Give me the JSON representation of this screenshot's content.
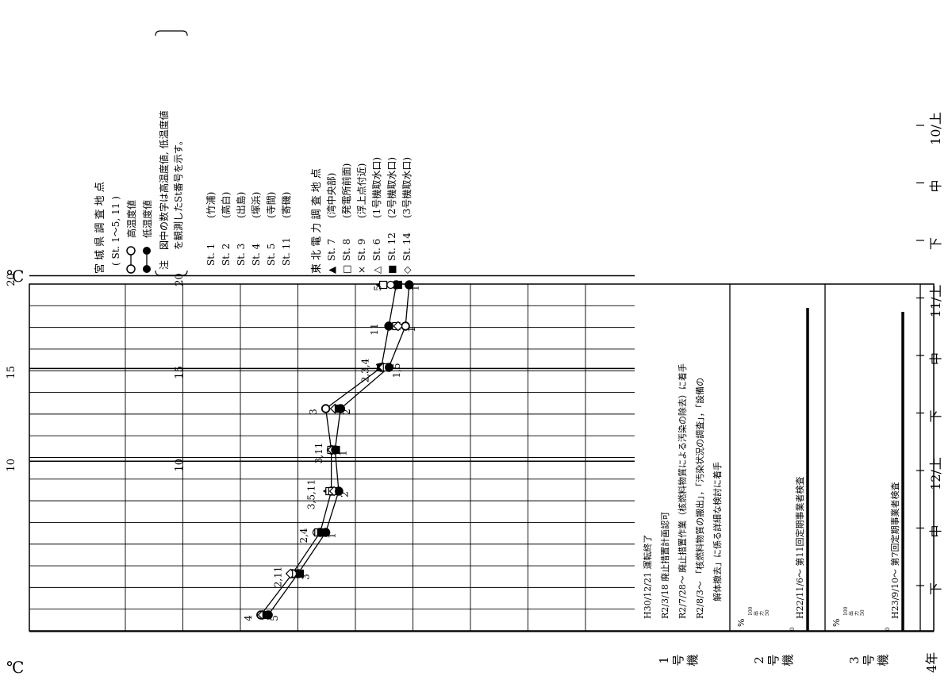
{
  "unit": "℃",
  "chart_data": {
    "type": "line",
    "orientation": "rotated-90ccw",
    "value_axis": {
      "unit": "℃",
      "range": [
        8,
        24
      ],
      "ticks": [
        "20",
        "15",
        "10"
      ]
    },
    "periods": [
      {
        "label": "10/上",
        "pos": 0
      },
      {
        "label": "中",
        "pos": 1
      },
      {
        "label": "下",
        "pos": 2
      },
      {
        "label": "11/上",
        "pos": 3
      },
      {
        "label": "中",
        "pos": 4
      },
      {
        "label": "下",
        "pos": 5
      },
      {
        "label": "12/上",
        "pos": 6
      },
      {
        "label": "中",
        "pos": 7
      },
      {
        "label": "下",
        "pos": 8
      }
    ],
    "year_label": "4年",
    "series": [
      {
        "name": "高温度値",
        "marker": "open-circle",
        "values": [
          20.8,
          19.1,
          17.6,
          17.0,
          17.0,
          17.3,
          14.3,
          13.9,
          13.5
        ]
      },
      {
        "name": "低温度値",
        "marker": "filled-circle",
        "values": [
          20.4,
          18.8,
          17.3,
          16.6,
          16.8,
          16.5,
          13.9,
          13.0,
          12.8
        ]
      }
    ],
    "tepco_points": [
      {
        "pos": 0,
        "items": [
          {
            "m": "ci-o",
            "v": 20.8
          },
          {
            "m": "di-o",
            "v": 20.7
          },
          {
            "m": "sq-f",
            "v": 20.5
          },
          {
            "m": "ci-f",
            "v": 20.4
          }
        ]
      },
      {
        "pos": 1,
        "items": [
          {
            "m": "di-o",
            "v": 19.2
          },
          {
            "m": "sq-o",
            "v": 18.9
          },
          {
            "m": "x",
            "v": 18.8
          },
          {
            "m": "sq-f",
            "v": 18.7
          }
        ]
      },
      {
        "pos": 2,
        "items": [
          {
            "m": "ci-o",
            "v": 17.8
          },
          {
            "m": "sq-o",
            "v": 17.7
          },
          {
            "m": "sq-f",
            "v": 17.55
          },
          {
            "m": "ci-f",
            "v": 17.3
          }
        ]
      },
      {
        "pos": 3,
        "items": [
          {
            "m": "tri-f",
            "v": 17.25
          },
          {
            "m": "sq-o",
            "v": 17.1
          },
          {
            "m": "sq-o",
            "v": 16.95
          },
          {
            "m": "di-o",
            "v": 16.85
          },
          {
            "m": "ci-f",
            "v": 16.6
          }
        ]
      },
      {
        "pos": 4,
        "items": [
          {
            "m": "sq-o",
            "v": 17.0
          },
          {
            "m": "di-o",
            "v": 16.95
          },
          {
            "m": "ci-o",
            "v": 16.8
          },
          {
            "m": "sq-f",
            "v": 16.75
          }
        ]
      },
      {
        "pos": 5,
        "items": [
          {
            "m": "ci-o",
            "v": 17.3
          },
          {
            "m": "di-o",
            "v": 16.8
          },
          {
            "m": "sq-f",
            "v": 16.6
          },
          {
            "m": "ci-f",
            "v": 16.5
          }
        ]
      },
      {
        "pos": 6,
        "items": [
          {
            "m": "x",
            "v": 14.4
          },
          {
            "m": "sq-f",
            "v": 14.3
          },
          {
            "m": "di-o",
            "v": 14.2
          },
          {
            "m": "sq-o",
            "v": 14.0
          },
          {
            "m": "ci-f",
            "v": 13.9
          }
        ]
      },
      {
        "pos": 7,
        "items": [
          {
            "m": "ci-f",
            "v": 13.9
          },
          {
            "m": "sq-o",
            "v": 13.5
          },
          {
            "m": "di-o",
            "v": 13.4
          },
          {
            "m": "ci-o",
            "v": 13.0
          }
        ]
      },
      {
        "pos": 8,
        "items": [
          {
            "m": "tri-f",
            "v": 14.4
          },
          {
            "m": "sq-o",
            "v": 14.2
          },
          {
            "m": "ci-o",
            "v": 13.8
          },
          {
            "m": "x",
            "v": 13.5
          },
          {
            "m": "sq-f",
            "v": 13.4
          },
          {
            "m": "ci-f",
            "v": 12.8
          }
        ]
      }
    ],
    "point_labels": [
      {
        "text": "4",
        "pos": 0,
        "v": 21.3
      },
      {
        "text": "5",
        "pos": 0,
        "v": 19.9
      },
      {
        "text": "2,11",
        "pos": 1,
        "v": 19.7
      },
      {
        "text": "3",
        "pos": 1,
        "v": 18.2
      },
      {
        "text": "2,4",
        "pos": 2,
        "v": 18.3
      },
      {
        "text": "1",
        "pos": 2,
        "v": 16.8
      },
      {
        "text": "3,5,11",
        "pos": 3,
        "v": 17.9
      },
      {
        "text": "2",
        "pos": 3,
        "v": 16.1
      },
      {
        "text": "3,11",
        "pos": 4,
        "v": 17.5
      },
      {
        "text": "1",
        "pos": 4,
        "v": 16.2
      },
      {
        "text": "3",
        "pos": 5,
        "v": 17.8
      },
      {
        "text": "2",
        "pos": 5,
        "v": 16.0
      },
      {
        "text": "2,3,4",
        "pos": 6,
        "v": 15.0
      },
      {
        "text": "1,5",
        "pos": 6,
        "v": 13.3
      },
      {
        "text": "11",
        "pos": 7,
        "v": 14.5
      },
      {
        "text": "1",
        "pos": 7,
        "v": 12.5
      },
      {
        "text": "5",
        "pos": 8,
        "v": 14.3
      },
      {
        "text": "1",
        "pos": 8,
        "v": 12.3
      }
    ]
  },
  "legend": {
    "pref_title": "宮 城 県 調 査 地 点",
    "pref_range": "( St. 1～5, 11 )",
    "high_label": "高温度値",
    "low_label": "低温度値",
    "note_mark": "注",
    "note_line1": "図中の数字は高温度値, 低温度値",
    "note_line2": "を観測したSt番号を示す。",
    "pref_stations": [
      {
        "id": "St. 1",
        "name": "(竹浦)"
      },
      {
        "id": "St. 2",
        "name": "(高白)"
      },
      {
        "id": "St. 3",
        "name": "(出島)"
      },
      {
        "id": "St. 4",
        "name": "(塚浜)"
      },
      {
        "id": "St. 5",
        "name": "(寺間)"
      },
      {
        "id": "St. 11",
        "name": "(寄磯)"
      }
    ],
    "tepco_title": "東 北 電 力 調 査 地 点",
    "tepco_stations": [
      {
        "mark": "▲",
        "id": "St. 7",
        "name": "(湾中央部)"
      },
      {
        "mark": "□",
        "id": "St. 8",
        "name": "(発電所前面)"
      },
      {
        "mark": "×",
        "id": "St. 9",
        "name": "(浮上点付近)"
      },
      {
        "mark": "△",
        "id": "St. 6",
        "name": "(1号機取水口)"
      },
      {
        "mark": "■",
        "id": "St. 12",
        "name": "(2号機取水口)"
      },
      {
        "mark": "◇",
        "id": "St. 14",
        "name": "(3号機取水口)"
      }
    ]
  },
  "units": {
    "unit1": {
      "label": [
        "1",
        "号",
        "機"
      ],
      "notes": [
        "H30/12/21  運転終了",
        "R2/3/18   廃止措置計画認可",
        "R2/7/28～  廃止措置作業（核燃料物質による汚染の除去）に着手",
        "R2/8/3～  「核燃料物質の搬出」，「汚染状況の調査」，「設備の",
        "解体撤去」に係る詳細な検討に着手"
      ]
    },
    "unit2": {
      "label": [
        "2",
        "号",
        "機"
      ],
      "inspection": "H22/11/6～  第11回定期事業者検査",
      "output_pct": 0
    },
    "unit3": {
      "label": [
        "3",
        "号",
        "機"
      ],
      "inspection": "H23/9/10～  第7回定期事業者検査",
      "output_pct": 0
    },
    "output_axis": {
      "unit": "%",
      "ticks": [
        "100",
        "出",
        "力",
        "50"
      ],
      "zero": "0"
    }
  }
}
